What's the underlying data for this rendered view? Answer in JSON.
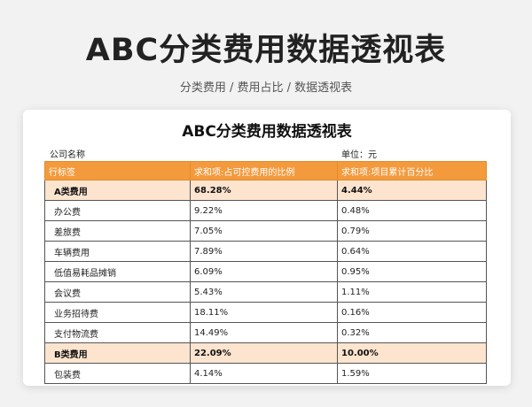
{
  "page": {
    "title": "ABC分类费用数据透视表",
    "subtitle": "分类费用 / 费用占比 / 数据透视表"
  },
  "sheet": {
    "title": "ABC分类费用数据透视表",
    "company_label": "公司名称",
    "unit_label": "单位：元",
    "columns": [
      "行标签",
      "求和项:占可控费用的比例",
      "求和项:项目累计百分比"
    ],
    "rows": [
      {
        "type": "group",
        "label": "A类费用",
        "ratio": "68.28%",
        "cumulative": "4.44%"
      },
      {
        "type": "item",
        "label": "办公费",
        "ratio": "9.22%",
        "cumulative": "0.48%"
      },
      {
        "type": "item",
        "label": "差旅费",
        "ratio": "7.05%",
        "cumulative": "0.79%"
      },
      {
        "type": "item",
        "label": "车辆费用",
        "ratio": "7.89%",
        "cumulative": "0.64%"
      },
      {
        "type": "item",
        "label": "低值易耗品摊销",
        "ratio": "6.09%",
        "cumulative": "0.95%"
      },
      {
        "type": "item",
        "label": "会议费",
        "ratio": "5.43%",
        "cumulative": "1.11%"
      },
      {
        "type": "item",
        "label": "业务招待费",
        "ratio": "18.11%",
        "cumulative": "0.16%"
      },
      {
        "type": "item",
        "label": "支付物流费",
        "ratio": "14.49%",
        "cumulative": "0.32%"
      },
      {
        "type": "group",
        "label": "B类费用",
        "ratio": "22.09%",
        "cumulative": "10.00%"
      },
      {
        "type": "item",
        "label": "包装费",
        "ratio": "4.14%",
        "cumulative": "1.59%"
      }
    ]
  },
  "colors": {
    "header_bg": "#f39a3d",
    "group_bg": "#fde4cf",
    "page_bg": "#f2f2f2"
  }
}
